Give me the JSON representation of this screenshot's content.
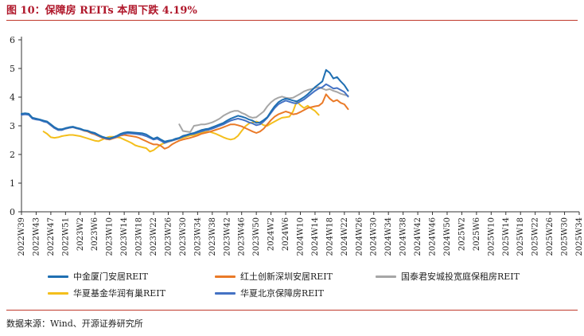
{
  "title": "图 10：保障房 REITs 本周下跌 4.19%",
  "source": "数据来源：Wind、开源证券研究所",
  "chart_data": {
    "type": "line",
    "title": "图 10：保障房 REITs 本周下跌 4.19%",
    "xlabel": "",
    "ylabel": "",
    "ylim": [
      0,
      6
    ],
    "yticks": [
      "0",
      "1",
      "2",
      "3",
      "4",
      "5",
      "6"
    ],
    "grid": false,
    "legend_position": "bottom",
    "x_tick_labels": [
      "2022W39",
      "2022W43",
      "2022W47",
      "2022W51",
      "2023W2",
      "2023W6",
      "2023W10",
      "2023W14",
      "2023W18",
      "2023W22",
      "2023W26",
      "2023W30",
      "2023W34",
      "2023W38",
      "2023W42",
      "2023W46",
      "2023W50",
      "2024W2",
      "2024W6",
      "2024W10",
      "2024W14",
      "2024W18",
      "2024W22",
      "2024W26",
      "2024W30",
      "2024W34",
      "2024W38",
      "2024W42",
      "2024W46",
      "2024W50",
      "2025W2",
      "2025W6",
      "2025W10",
      "2025W14",
      "2025W18",
      "2025W22",
      "2025W26",
      "2025W30",
      "2025W34"
    ],
    "series": [
      {
        "name": "中金厦门安居REIT",
        "color": "#1f6fb2",
        "start_index": 0,
        "values": [
          3.42,
          3.44,
          3.42,
          3.28,
          3.25,
          3.22,
          3.18,
          3.15,
          3.05,
          2.95,
          2.88,
          2.88,
          2.92,
          2.95,
          2.97,
          2.93,
          2.9,
          2.85,
          2.83,
          2.78,
          2.75,
          2.68,
          2.62,
          2.58,
          2.56,
          2.6,
          2.65,
          2.72,
          2.76,
          2.78,
          2.77,
          2.76,
          2.75,
          2.74,
          2.7,
          2.62,
          2.55,
          2.6,
          2.52,
          2.45,
          2.48,
          2.5,
          2.55,
          2.58,
          2.65,
          2.68,
          2.72,
          2.75,
          2.8,
          2.85,
          2.88,
          2.9,
          2.95,
          3.0,
          3.05,
          3.1,
          3.18,
          3.25,
          3.3,
          3.35,
          3.32,
          3.28,
          3.22,
          3.18,
          3.1,
          3.12,
          3.2,
          3.3,
          3.5,
          3.68,
          3.82,
          3.9,
          3.95,
          3.92,
          3.88,
          3.85,
          3.92,
          4.0,
          4.1,
          4.22,
          4.35,
          4.45,
          4.55,
          4.95,
          4.85,
          4.65,
          4.7,
          4.55,
          4.42,
          4.22
        ]
      },
      {
        "name": "红土创新深圳安居REIT",
        "color": "#ea7a28",
        "start_index": 0,
        "values": [
          3.4,
          3.42,
          3.4,
          3.27,
          3.24,
          3.21,
          3.17,
          3.12,
          3.02,
          2.92,
          2.86,
          2.86,
          2.9,
          2.93,
          2.95,
          2.91,
          2.88,
          2.83,
          2.8,
          2.74,
          2.7,
          2.64,
          2.58,
          2.54,
          2.52,
          2.56,
          2.6,
          2.66,
          2.68,
          2.66,
          2.64,
          2.62,
          2.58,
          2.52,
          2.46,
          2.4,
          2.35,
          2.35,
          2.3,
          2.2,
          2.25,
          2.35,
          2.42,
          2.48,
          2.52,
          2.55,
          2.58,
          2.62,
          2.66,
          2.72,
          2.75,
          2.78,
          2.82,
          2.86,
          2.9,
          2.95,
          3.0,
          3.05,
          3.05,
          3.02,
          2.98,
          2.92,
          2.86,
          2.8,
          2.75,
          2.8,
          2.9,
          3.05,
          3.2,
          3.32,
          3.4,
          3.45,
          3.5,
          3.46,
          3.4,
          3.42,
          3.48,
          3.55,
          3.62,
          3.65,
          3.68,
          3.7,
          3.8,
          4.1,
          3.95,
          3.85,
          3.9,
          3.8,
          3.75,
          3.58
        ]
      },
      {
        "name": "国泰君安城投宽庭保租房REIT",
        "color": "#a6a6a6",
        "start_index": 43,
        "values": [
          3.05,
          2.82,
          2.8,
          2.78,
          3.0,
          3.02,
          3.05,
          3.05,
          3.08,
          3.12,
          3.18,
          3.25,
          3.35,
          3.42,
          3.48,
          3.52,
          3.52,
          3.45,
          3.4,
          3.32,
          3.28,
          3.3,
          3.4,
          3.5,
          3.68,
          3.82,
          3.92,
          3.98,
          4.02,
          3.98,
          3.96,
          3.98,
          4.05,
          4.12,
          4.2,
          4.25,
          4.28,
          4.32,
          4.35,
          4.3,
          4.25,
          4.28,
          4.22,
          4.18,
          4.12,
          4.08,
          4.05
        ]
      },
      {
        "name": "华夏基金华润有巢REIT",
        "color": "#f4bf1c",
        "start_index": 6,
        "values": [
          2.8,
          2.72,
          2.6,
          2.58,
          2.6,
          2.64,
          2.66,
          2.68,
          2.68,
          2.66,
          2.64,
          2.6,
          2.56,
          2.52,
          2.48,
          2.46,
          2.52,
          2.58,
          2.62,
          2.62,
          2.6,
          2.58,
          2.52,
          2.46,
          2.4,
          2.32,
          2.28,
          2.25,
          2.22,
          2.1,
          2.15,
          2.25,
          2.35,
          2.4,
          2.44,
          2.48,
          2.52,
          2.55,
          2.58,
          2.62,
          2.66,
          2.68,
          2.72,
          2.76,
          2.78,
          2.8,
          2.76,
          2.72,
          2.66,
          2.6,
          2.55,
          2.52,
          2.55,
          2.65,
          2.82,
          2.98,
          3.08,
          3.12,
          3.15,
          3.1,
          3.02,
          3.0,
          3.08,
          3.15,
          3.22,
          3.28,
          3.3,
          3.32,
          3.5,
          3.85,
          3.72,
          3.62,
          3.7,
          3.6,
          3.52,
          3.38
        ]
      },
      {
        "name": "华夏北京保障房REIT",
        "color": "#4472c4",
        "start_index": 0,
        "values": [
          3.38,
          3.4,
          3.38,
          3.25,
          3.22,
          3.2,
          3.15,
          3.12,
          3.02,
          2.92,
          2.85,
          2.85,
          2.9,
          2.93,
          2.95,
          2.91,
          2.88,
          2.84,
          2.82,
          2.76,
          2.72,
          2.66,
          2.6,
          2.56,
          2.54,
          2.58,
          2.62,
          2.68,
          2.72,
          2.74,
          2.73,
          2.72,
          2.7,
          2.68,
          2.64,
          2.58,
          2.52,
          2.55,
          2.48,
          2.4,
          2.45,
          2.48,
          2.52,
          2.56,
          2.62,
          2.66,
          2.7,
          2.72,
          2.76,
          2.8,
          2.84,
          2.86,
          2.9,
          2.95,
          3.0,
          3.05,
          3.12,
          3.18,
          3.22,
          3.25,
          3.22,
          3.18,
          3.12,
          3.08,
          3.02,
          3.05,
          3.15,
          3.28,
          3.45,
          3.62,
          3.75,
          3.82,
          3.88,
          3.84,
          3.8,
          3.78,
          3.85,
          3.92,
          4.02,
          4.12,
          4.22,
          4.3,
          4.35,
          4.45,
          4.38,
          4.3,
          4.32,
          4.25,
          4.18,
          4.02
        ]
      }
    ]
  }
}
